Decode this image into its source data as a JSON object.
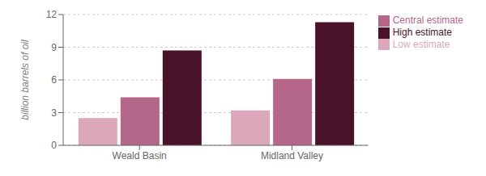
{
  "chart_data": {
    "type": "bar",
    "ylabel": "billion barrels of oil",
    "categories": [
      "Weald Basin",
      "Midland Valley"
    ],
    "series": [
      {
        "name": "Low estimate",
        "color": "#dba8bb",
        "values": [
          2.5,
          3.2
        ]
      },
      {
        "name": "Central estimate",
        "color": "#b5678a",
        "values": [
          4.4,
          6.1
        ]
      },
      {
        "name": "High estimate",
        "color": "#4a1228",
        "values": [
          8.7,
          11.3
        ]
      }
    ],
    "ylim": [
      0,
      12
    ],
    "yticks": [
      0,
      3,
      6,
      9,
      12
    ],
    "grid": true,
    "legend": "upper right"
  }
}
